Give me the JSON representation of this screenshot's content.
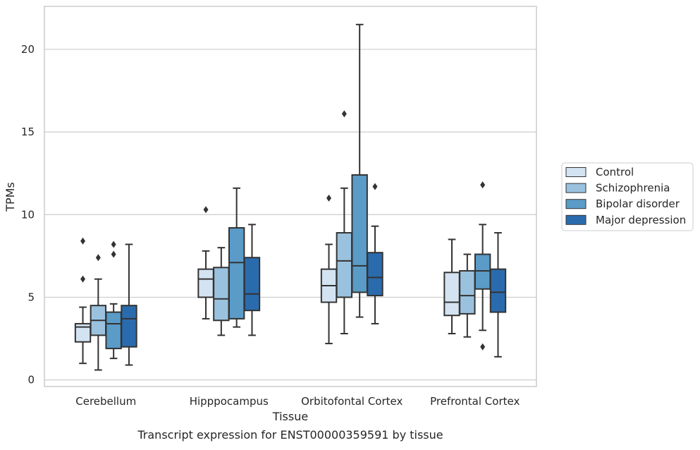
{
  "chart_data": {
    "type": "box",
    "xlabel": "Tissue",
    "ylabel": "TPMs",
    "caption": "Transcript expression for ENST00000359591 by tissue",
    "ylim": [
      -0.4,
      22.6
    ],
    "yticks": [
      0,
      5,
      10,
      15,
      20
    ],
    "grid": true,
    "legend_position": "right",
    "categories": [
      "Cerebellum",
      "Hipppocampus",
      "Orbitofontal Cortex",
      "Prefrontal Cortex"
    ],
    "series": [
      {
        "name": "Control",
        "color": "#d3e3f2",
        "boxes": [
          {
            "whislo": 1.0,
            "q1": 2.3,
            "med": 3.2,
            "q3": 3.4,
            "whishi": 4.4,
            "fliers": [
              8.4,
              6.1
            ]
          },
          {
            "whislo": 3.7,
            "q1": 5.0,
            "med": 6.1,
            "q3": 6.7,
            "whishi": 7.8,
            "fliers": [
              10.3
            ]
          },
          {
            "whislo": 2.2,
            "q1": 4.7,
            "med": 5.7,
            "q3": 6.7,
            "whishi": 8.2,
            "fliers": [
              11.0
            ]
          },
          {
            "whislo": 2.8,
            "q1": 3.9,
            "med": 4.7,
            "q3": 6.5,
            "whishi": 8.5,
            "fliers": []
          }
        ]
      },
      {
        "name": "Schizophrenia",
        "color": "#9ac2de",
        "boxes": [
          {
            "whislo": 0.6,
            "q1": 2.7,
            "med": 3.6,
            "q3": 4.5,
            "whishi": 6.1,
            "fliers": [
              7.4
            ]
          },
          {
            "whislo": 2.7,
            "q1": 3.6,
            "med": 4.9,
            "q3": 6.8,
            "whishi": 8.0,
            "fliers": []
          },
          {
            "whislo": 2.8,
            "q1": 5.0,
            "med": 7.2,
            "q3": 8.9,
            "whishi": 11.6,
            "fliers": [
              16.1
            ]
          },
          {
            "whislo": 2.6,
            "q1": 4.0,
            "med": 5.1,
            "q3": 6.6,
            "whishi": 7.6,
            "fliers": []
          }
        ]
      },
      {
        "name": "Bipolar disorder",
        "color": "#5a9bc8",
        "boxes": [
          {
            "whislo": 1.3,
            "q1": 1.9,
            "med": 3.4,
            "q3": 4.1,
            "whishi": 4.6,
            "fliers": [
              8.2,
              7.6
            ]
          },
          {
            "whislo": 3.2,
            "q1": 3.7,
            "med": 7.1,
            "q3": 9.2,
            "whishi": 11.6,
            "fliers": []
          },
          {
            "whislo": 3.8,
            "q1": 5.3,
            "med": 6.9,
            "q3": 12.4,
            "whishi": 21.5,
            "fliers": []
          },
          {
            "whislo": 3.0,
            "q1": 5.5,
            "med": 6.6,
            "q3": 7.6,
            "whishi": 9.4,
            "fliers": [
              11.8,
              2.0
            ]
          }
        ]
      },
      {
        "name": "Major depression",
        "color": "#2a6bad",
        "boxes": [
          {
            "whislo": 0.9,
            "q1": 2.0,
            "med": 3.7,
            "q3": 4.5,
            "whishi": 8.2,
            "fliers": []
          },
          {
            "whislo": 2.7,
            "q1": 4.2,
            "med": 5.2,
            "q3": 7.4,
            "whishi": 9.4,
            "fliers": []
          },
          {
            "whislo": 3.4,
            "q1": 5.1,
            "med": 6.2,
            "q3": 7.7,
            "whishi": 9.3,
            "fliers": [
              11.7
            ]
          },
          {
            "whislo": 1.4,
            "q1": 4.1,
            "med": 5.3,
            "q3": 6.7,
            "whishi": 8.9,
            "fliers": []
          }
        ]
      }
    ]
  }
}
